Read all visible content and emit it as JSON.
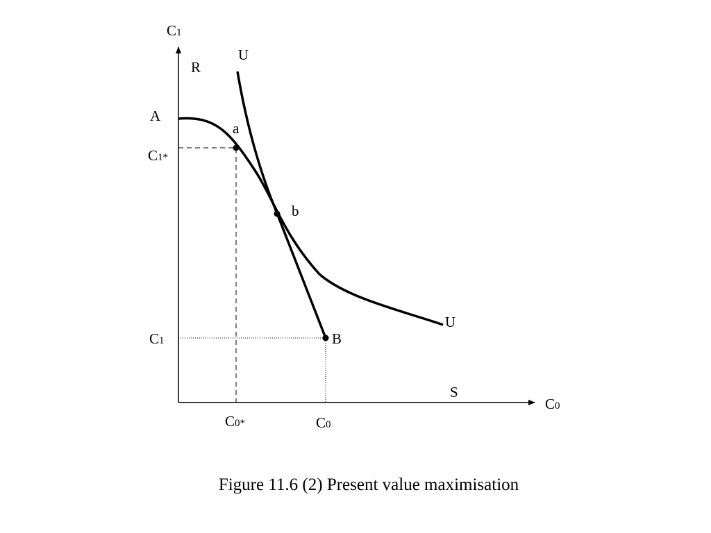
{
  "axes": {
    "y": {
      "letter": "C",
      "sub": "1"
    },
    "x": {
      "letter": "C",
      "sub": "0"
    }
  },
  "points": {
    "R": "R",
    "A": "A",
    "u_top": "U",
    "u_right": "U",
    "a": "a",
    "b": "b",
    "B": "B",
    "S": "S"
  },
  "ticks": {
    "c1_star": {
      "letter": "C",
      "sub": "1*"
    },
    "c1": {
      "letter": "C",
      "sub": "1"
    },
    "c0_star": {
      "letter": "C",
      "sub": "0*"
    },
    "c0": {
      "letter": "C",
      "sub": "0"
    }
  },
  "caption": "Figure 11.6 (2) Present value maximisation"
}
